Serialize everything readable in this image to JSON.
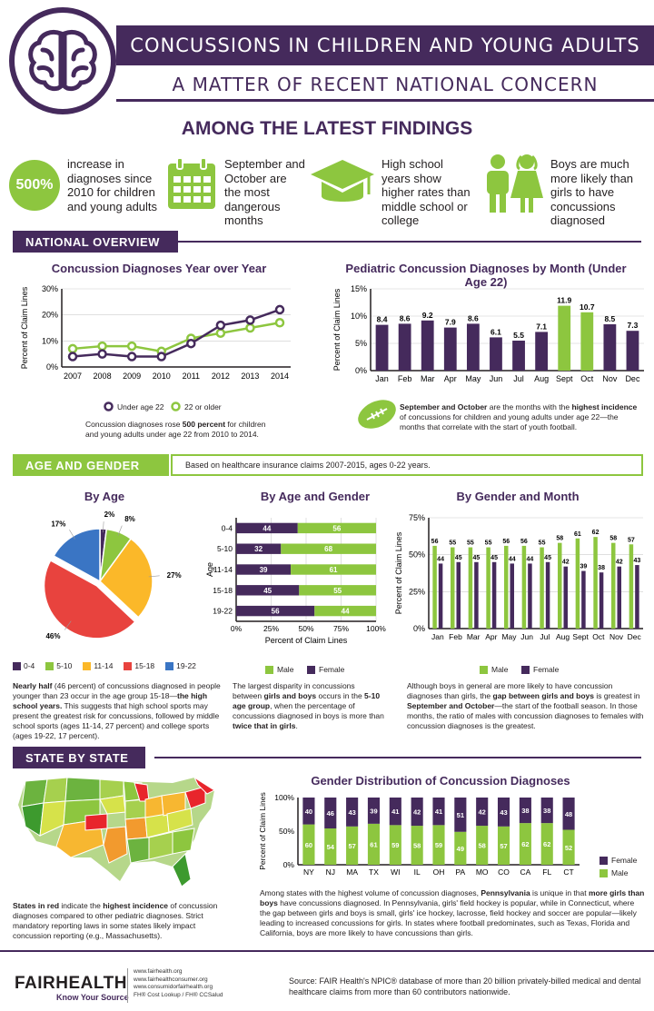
{
  "header": {
    "title": "CONCUSSIONS IN CHILDREN AND YOUNG ADULTS",
    "subtitle": "A MATTER OF RECENT NATIONAL CONCERN",
    "icon": "brain-icon"
  },
  "findings": {
    "title": "AMONG THE LATEST FINDINGS",
    "items": [
      {
        "badge": "500%",
        "text": "increase in diagnoses since 2010 for children and young adults",
        "icon": "percent-badge"
      },
      {
        "text": "September and October are the most dangerous months",
        "icon": "calendar-icon"
      },
      {
        "text": "High school years show higher rates than middle school or college",
        "icon": "graduation-cap-icon"
      },
      {
        "text": "Boys are much more likely than girls to have concussions diagnosed",
        "icon": "boy-girl-icon"
      }
    ]
  },
  "sections": {
    "national": "NATIONAL OVERVIEW",
    "age_gender": "AGE AND GENDER",
    "age_gender_note": "Based on healthcare insurance claims 2007-2015, ages 0-22 years.",
    "state": "STATE BY STATE"
  },
  "colors": {
    "purple": "#452a5c",
    "green": "#8dc63f"
  },
  "chart_data": [
    {
      "id": "yoy",
      "type": "line",
      "title": "Concussion Diagnoses Year over Year",
      "ylabel": "Percent of Claim Lines",
      "x": [
        "2007",
        "2008",
        "2009",
        "2010",
        "2011",
        "2012",
        "2013",
        "2014"
      ],
      "ylim": [
        0,
        30
      ],
      "yticks": [
        "0%",
        "10%",
        "20%",
        "30%"
      ],
      "series": [
        {
          "name": "Under age 22",
          "color": "#452a5c",
          "values": [
            4,
            5,
            4,
            4,
            9,
            16,
            18,
            22
          ]
        },
        {
          "name": "22 or older",
          "color": "#8dc63f",
          "values": [
            7,
            8,
            8,
            6,
            11,
            13,
            15,
            17
          ]
        }
      ],
      "note_pre": "Concussion diagnoses rose ",
      "note_bold": "500 percent",
      "note_post": " for children and young adults under age 22 from 2010 to 2014."
    },
    {
      "id": "month",
      "type": "bar",
      "title": "Pediatric Concussion Diagnoses by Month (Under Age 22)",
      "ylabel": "Percent of Claim Lines",
      "categories": [
        "Jan",
        "Feb",
        "Mar",
        "Apr",
        "May",
        "Jun",
        "Jul",
        "Aug",
        "Sept",
        "Oct",
        "Nov",
        "Dec"
      ],
      "values": [
        8.4,
        8.6,
        9.2,
        7.9,
        8.6,
        6.1,
        5.5,
        7.1,
        11.9,
        10.7,
        8.5,
        7.3
      ],
      "highlight": [
        8,
        9
      ],
      "ylim": [
        0,
        15
      ],
      "yticks": [
        "0%",
        "5%",
        "10%",
        "15%"
      ],
      "note_bold1": "September and October",
      "note_mid": " are the months with the ",
      "note_bold2": "highest incidence",
      "note_post": " of concussions for children and young adults under age 22—the months that correlate with the start of youth football.",
      "note_icon": "football-icon"
    },
    {
      "id": "age",
      "type": "pie",
      "title": "By Age",
      "categories": [
        "0-4",
        "5-10",
        "11-14",
        "15-18",
        "19-22"
      ],
      "values": [
        2,
        8,
        27,
        46,
        17
      ],
      "labels": [
        "2%",
        "8%",
        "27%",
        "46%",
        "17%"
      ],
      "colors": [
        "#452a5c",
        "#8dc63f",
        "#fbb829",
        "#e8433e",
        "#3a75c4"
      ],
      "note_b1": "Nearly half",
      "note_t1": " (46 percent) of concussions diagnosed in people younger than 23 occur in the age group 15-18—",
      "note_b2": "the high school years.",
      "note_t2": " This suggests that high school sports may present the greatest risk for concussions, followed by middle school sports (ages 11-14, 27 percent) and college sports (ages 19-22, 17 percent)."
    },
    {
      "id": "agegender",
      "type": "bar",
      "title": "By Age and Gender",
      "ylabel": "Age",
      "xlabel": "Percent of Claim Lines",
      "categories": [
        "0-4",
        "5-10",
        "11-14",
        "15-18",
        "19-22"
      ],
      "series": [
        {
          "name": "Female",
          "color": "#452a5c",
          "values": [
            44,
            32,
            39,
            45,
            56
          ]
        },
        {
          "name": "Male",
          "color": "#8dc63f",
          "values": [
            56,
            68,
            61,
            55,
            44
          ]
        }
      ],
      "xticks": [
        "0%",
        "25%",
        "50%",
        "75%",
        "100%"
      ],
      "note_t1": "The largest disparity in concussions between ",
      "note_b1": "girls and boys",
      "note_t2": " occurs in the ",
      "note_b2": "5-10 age group",
      "note_t3": ", when the percentage of concussions diagnosed in boys is more than ",
      "note_b3": "twice that in girls",
      "note_t4": "."
    },
    {
      "id": "gendermonth",
      "type": "bar",
      "title": "By Gender and Month",
      "ylabel": "Percent of Claim Lines",
      "categories": [
        "Jan",
        "Feb",
        "Mar",
        "Apr",
        "May",
        "Jun",
        "Jul",
        "Aug",
        "Sept",
        "Oct",
        "Nov",
        "Dec"
      ],
      "series": [
        {
          "name": "Male",
          "color": "#8dc63f",
          "values": [
            56,
            55,
            55,
            55,
            56,
            56,
            55,
            58,
            61,
            62,
            58,
            57
          ]
        },
        {
          "name": "Female",
          "color": "#452a5c",
          "values": [
            44,
            45,
            45,
            45,
            44,
            44,
            45,
            42,
            39,
            38,
            42,
            43
          ]
        }
      ],
      "ylim": [
        0,
        75
      ],
      "yticks": [
        "0%",
        "25%",
        "50%",
        "75%"
      ],
      "note_t1": "Although boys in general are more likely to have concussion diagnoses than girls, the ",
      "note_b1": "gap between girls and boys",
      "note_t2": " is greatest in ",
      "note_b2": "September and October",
      "note_t3": "—the start of the football season. In those months, the ratio of males with concussion diagnoses to females with concussion diagnoses is the greatest."
    },
    {
      "id": "state",
      "type": "bar",
      "title": "Gender Distribution of Concussion Diagnoses",
      "ylabel": "Percent of Claim Lines",
      "categories": [
        "NY",
        "NJ",
        "MA",
        "TX",
        "WI",
        "IL",
        "OH",
        "PA",
        "MO",
        "CO",
        "CA",
        "FL",
        "CT"
      ],
      "series": [
        {
          "name": "Female",
          "color": "#452a5c",
          "values": [
            40,
            46,
            43,
            39,
            41,
            42,
            41,
            51,
            42,
            43,
            38,
            38,
            48
          ]
        },
        {
          "name": "Male",
          "color": "#8dc63f",
          "values": [
            60,
            54,
            57,
            61,
            59,
            58,
            59,
            49,
            58,
            57,
            62,
            62,
            52
          ]
        }
      ],
      "yticks": [
        "0%",
        "50%",
        "100%"
      ],
      "map_icon": "us-map-icon",
      "map_note_b1": "States in red",
      "map_note_t1": " indicate the ",
      "map_note_b2": "highest incidence",
      "map_note_t2": " of concussion diagnoses compared to other pediatric diagnoses. Strict mandatory reporting laws in some states likely impact concussion reporting (e.g., Massachusetts).",
      "note_t1": "Among states with the highest volume of concussion diagnoses, ",
      "note_b1": "Pennsylvania",
      "note_t2": " is unique in that ",
      "note_b2": "more girls than boys",
      "note_t3": " have concussions diagnosed. In Pennsylvania, girls' field hockey is popular, while in Connecticut, where the gap between girls and boys is small, girls' ice hockey, lacrosse, field hockey and soccer are popular—likely leading to increased concussions for girls. In states where football predominates, such as Texas, Florida and California, boys are more likely to have concussions than girls."
    }
  ],
  "footer": {
    "logo": "FAIRHEALTH",
    "tagline": "Know Your Source",
    "links": [
      "www.fairhealth.org",
      "www.fairhealthconsumer.org",
      "www.consumidorfairhealth.org",
      "FH® Cost Lookup / FH® CCSalud"
    ],
    "source": "Source: FAIR Health's NPIC® database of more than 20 billion privately-billed medical and dental healthcare claims from more than 60 contributors nationwide."
  }
}
